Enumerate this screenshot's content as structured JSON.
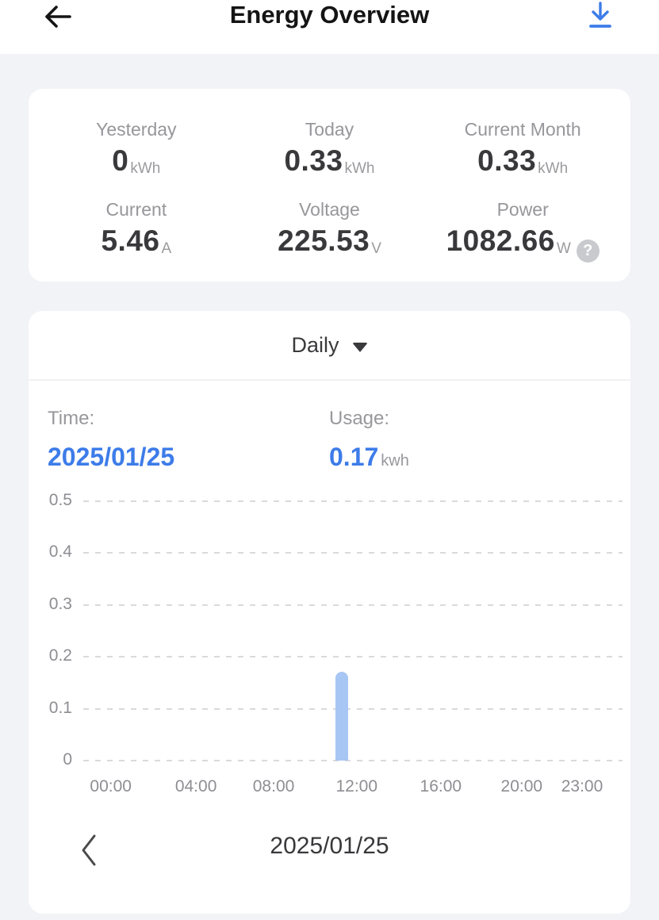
{
  "header": {
    "title": "Energy Overview"
  },
  "stats": {
    "row1": [
      {
        "label": "Yesterday",
        "value": "0",
        "unit": "kWh"
      },
      {
        "label": "Today",
        "value": "0.33",
        "unit": "kWh"
      },
      {
        "label": "Current Month",
        "value": "0.33",
        "unit": "kWh"
      }
    ],
    "row2": [
      {
        "label": "Current",
        "value": "5.46",
        "unit": "A"
      },
      {
        "label": "Voltage",
        "value": "225.53",
        "unit": "V"
      },
      {
        "label": "Power",
        "value": "1082.66",
        "unit": "W",
        "info_badge": "?"
      }
    ]
  },
  "chart_card": {
    "period_selected": "Daily",
    "time_label": "Time:",
    "time_value": "2025/01/25",
    "usage_label": "Usage:",
    "usage_value": "0.17",
    "usage_unit": "kwh",
    "nav_date": "2025/01/25"
  },
  "chart_data": {
    "type": "bar",
    "title": "",
    "ylim": [
      0,
      0.5
    ],
    "y_ticks": [
      "0.5",
      "0.4",
      "0.3",
      "0.2",
      "0.1",
      "0"
    ],
    "x_ticks": [
      "00:00",
      "04:00",
      "08:00",
      "12:00",
      "16:00",
      "20:00",
      "23:00"
    ],
    "x_tick_pos_pct": [
      5.1,
      20.9,
      35.3,
      50.7,
      66.3,
      81.3,
      92.5
    ],
    "hours_per_day": 24,
    "bars": [
      {
        "hour": 11,
        "time": "11:00",
        "value": 0.17
      }
    ],
    "grid": "horizontal-dashed",
    "legend": "none",
    "bar_color": "#A8C6F4"
  },
  "colors": {
    "accent_blue": "#3D7CE9",
    "bar_blue": "#A8C6F4",
    "page_background": "#F2F3F6"
  }
}
